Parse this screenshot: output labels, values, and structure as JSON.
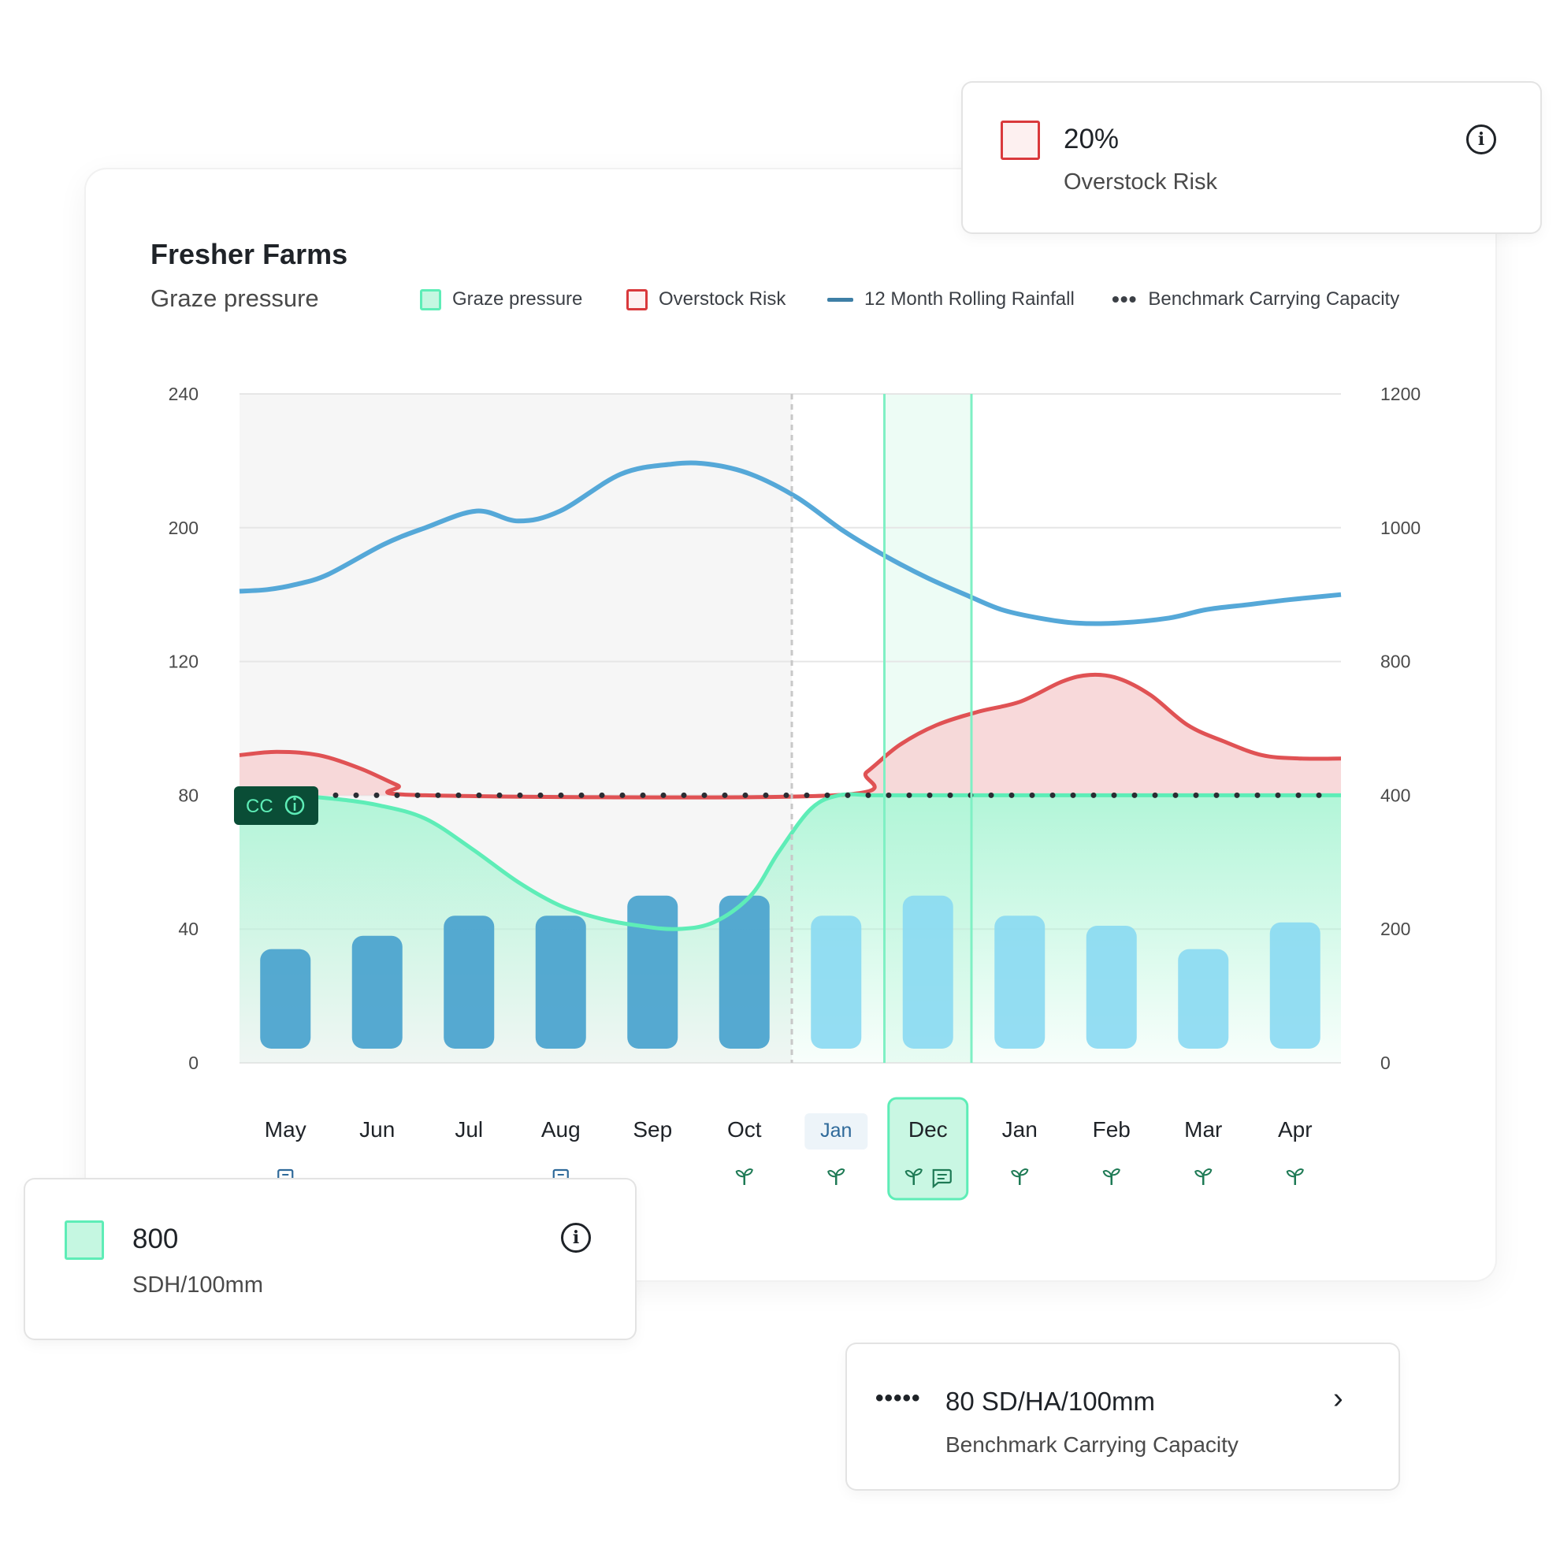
{
  "header": {
    "title": "Fresher Farms",
    "subtitle": "Graze pressure"
  },
  "legend": [
    {
      "label": "Graze pressure",
      "icon": "square-icon"
    },
    {
      "label": "Overstock Risk",
      "icon": "square-icon"
    },
    {
      "label": "12 Month Rolling Rainfall",
      "icon": "line-icon"
    },
    {
      "label": "Benchmark Carrying Capacity",
      "icon": "dots-icon"
    }
  ],
  "colors": {
    "graze": "#5eedb7",
    "graze_fill": "#aef5d6",
    "risk": "#e05254",
    "risk_fill": "#f7d2d3",
    "rainfall": "#55a8d8",
    "bar_past": "#4da4cf",
    "bar_future": "#8ad9f2",
    "accent_dark": "#0a4d36"
  },
  "chart_data": {
    "type": "bar+line+area",
    "categories": [
      "May",
      "Jun",
      "Jul",
      "Aug",
      "Sep",
      "Oct",
      "Jan",
      "Dec",
      "Jan",
      "Feb",
      "Mar",
      "Apr"
    ],
    "left_axis": {
      "ticks": [
        0,
        40,
        80,
        120,
        200,
        240
      ],
      "note": "non-linear tick spacing as shown"
    },
    "right_axis": {
      "ticks": [
        0,
        200,
        400,
        800,
        1000,
        1200
      ]
    },
    "series": [
      {
        "name": "Rainfall bars",
        "axis": "left",
        "type": "bar",
        "values": [
          34,
          38,
          44,
          44,
          50,
          50,
          44,
          50,
          44,
          41,
          34,
          42
        ]
      },
      {
        "name": "12 Month Rolling Rainfall",
        "axis": "left",
        "type": "line",
        "x": [
          0,
          0.3,
          0.6,
          0.95,
          1.55,
          2.0,
          2.55,
          3.0,
          3.45,
          4.1,
          4.65,
          5.05,
          5.5,
          6.0,
          6.5,
          6.95,
          7.4,
          7.85,
          8.2,
          8.6,
          9.0,
          9.45,
          10.0,
          10.4,
          10.85,
          11.3,
          11.85
        ],
        "values": [
          162,
          163,
          166,
          172,
          190,
          200,
          205,
          202,
          205,
          216,
          219,
          219,
          216,
          209,
          198,
          183,
          170,
          159,
          151,
          146,
          143,
          143,
          146,
          151,
          154,
          157,
          160
        ]
      },
      {
        "name": "Graze pressure",
        "axis": "left",
        "type": "area",
        "x": [
          0,
          0.5,
          1.0,
          1.5,
          2.0,
          2.5,
          3.0,
          3.45,
          3.9,
          4.3,
          4.7,
          5.1,
          5.5,
          5.8,
          6.15,
          6.45,
          6.8,
          7.1,
          7.5,
          8.0,
          8.5,
          9.0,
          9.5,
          10.0,
          10.5,
          11.0,
          11.85
        ],
        "values": [
          80,
          80,
          79,
          77,
          73,
          64,
          54,
          47,
          43,
          41,
          40,
          42,
          50,
          63,
          76,
          80,
          80,
          80,
          80,
          80,
          80,
          80,
          80,
          80,
          80,
          80,
          80
        ]
      },
      {
        "name": "Overstock Risk",
        "axis": "left",
        "type": "area",
        "x": [
          0,
          0.4,
          0.85,
          1.3,
          1.7,
          2.0,
          6.4,
          6.75,
          7.1,
          7.5,
          7.95,
          8.4,
          8.85,
          9.15,
          9.45,
          9.8,
          10.2,
          10.6,
          11.0,
          11.4,
          11.85
        ],
        "values": [
          92,
          93,
          92,
          88,
          83,
          80,
          80,
          87,
          95,
          101,
          105,
          108,
          114,
          116,
          115,
          110,
          101,
          96,
          92,
          91,
          91
        ]
      },
      {
        "name": "Benchmark Carrying Capacity",
        "axis": "left",
        "type": "dotted",
        "value": 80
      }
    ],
    "badge": {
      "label": "CC",
      "icon": "info-icon"
    },
    "past_months": 6,
    "highlight_index": 7,
    "month_icons": [
      "note",
      "",
      "",
      "note",
      "",
      "sprout",
      "sprout",
      "sprout+comment",
      "sprout",
      "sprout",
      "sprout",
      "sprout"
    ]
  },
  "popups": {
    "overstock": {
      "value": "20%",
      "label": "Overstock Risk"
    },
    "sdh": {
      "value": "800",
      "label": "SDH/100mm"
    },
    "benchmark": {
      "value": "80 SD/HA/100mm",
      "label": "Benchmark Carrying Capacity",
      "dots": "•••••"
    }
  }
}
